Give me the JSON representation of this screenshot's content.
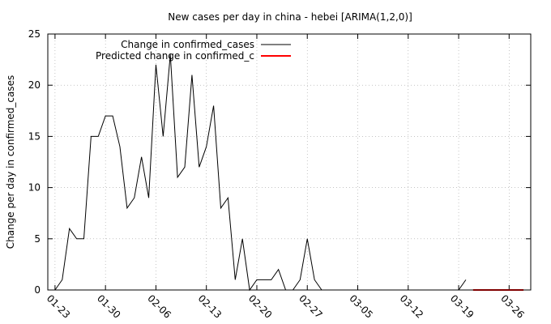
{
  "chart_data": {
    "type": "line",
    "title": "New cases per day in china - hebei [ARIMA(1,2,0)]",
    "ylabel": "Change per day in confirmed_cases",
    "xlabel": "",
    "ylim": [
      0,
      25
    ],
    "yticks": [
      0,
      5,
      10,
      15,
      20,
      25
    ],
    "xlim": [
      "01-22",
      "03-29"
    ],
    "xticks": [
      "01-23",
      "01-30",
      "02-06",
      "02-13",
      "02-20",
      "02-27",
      "03-05",
      "03-12",
      "03-19",
      "03-26"
    ],
    "grid": true,
    "legend_position": "top-left",
    "series": [
      {
        "name": "Change in confirmed_cases",
        "color": "#000000",
        "x": [
          "01-23",
          "01-24",
          "01-25",
          "01-26",
          "01-27",
          "01-28",
          "01-29",
          "01-30",
          "01-31",
          "02-01",
          "02-02",
          "02-03",
          "02-04",
          "02-05",
          "02-06",
          "02-07",
          "02-08",
          "02-09",
          "02-10",
          "02-11",
          "02-12",
          "02-13",
          "02-14",
          "02-15",
          "02-16",
          "02-17",
          "02-18",
          "02-19",
          "02-20",
          "02-21",
          "02-22",
          "02-23",
          "02-24",
          "02-25",
          "02-26",
          "02-27",
          "02-28",
          "02-29",
          "03-01",
          "03-02",
          "03-03",
          "03-04",
          "03-05",
          "03-06",
          "03-07",
          "03-08",
          "03-09",
          "03-10",
          "03-11",
          "03-12",
          "03-13",
          "03-14",
          "03-15",
          "03-16",
          "03-17",
          "03-18",
          "03-19",
          "03-20"
        ],
        "y": [
          0,
          1,
          6,
          5,
          5,
          15,
          15,
          17,
          17,
          14,
          8,
          9,
          13,
          9,
          22,
          15,
          23,
          11,
          12,
          21,
          12,
          14,
          18,
          8,
          9,
          1,
          5,
          0,
          1,
          1,
          1,
          2,
          0,
          0,
          1,
          5,
          1,
          0,
          0,
          0,
          0,
          0,
          0,
          0,
          0,
          0,
          0,
          0,
          0,
          0,
          0,
          0,
          0,
          0,
          0,
          0,
          0,
          1
        ]
      },
      {
        "name": "Predicted change in confirmed_c",
        "color": "#ff0000",
        "x": [
          "03-21",
          "03-22",
          "03-23",
          "03-24",
          "03-25",
          "03-26",
          "03-27",
          "03-28"
        ],
        "y": [
          0,
          0,
          0,
          0,
          0,
          0,
          0,
          0
        ]
      }
    ]
  }
}
